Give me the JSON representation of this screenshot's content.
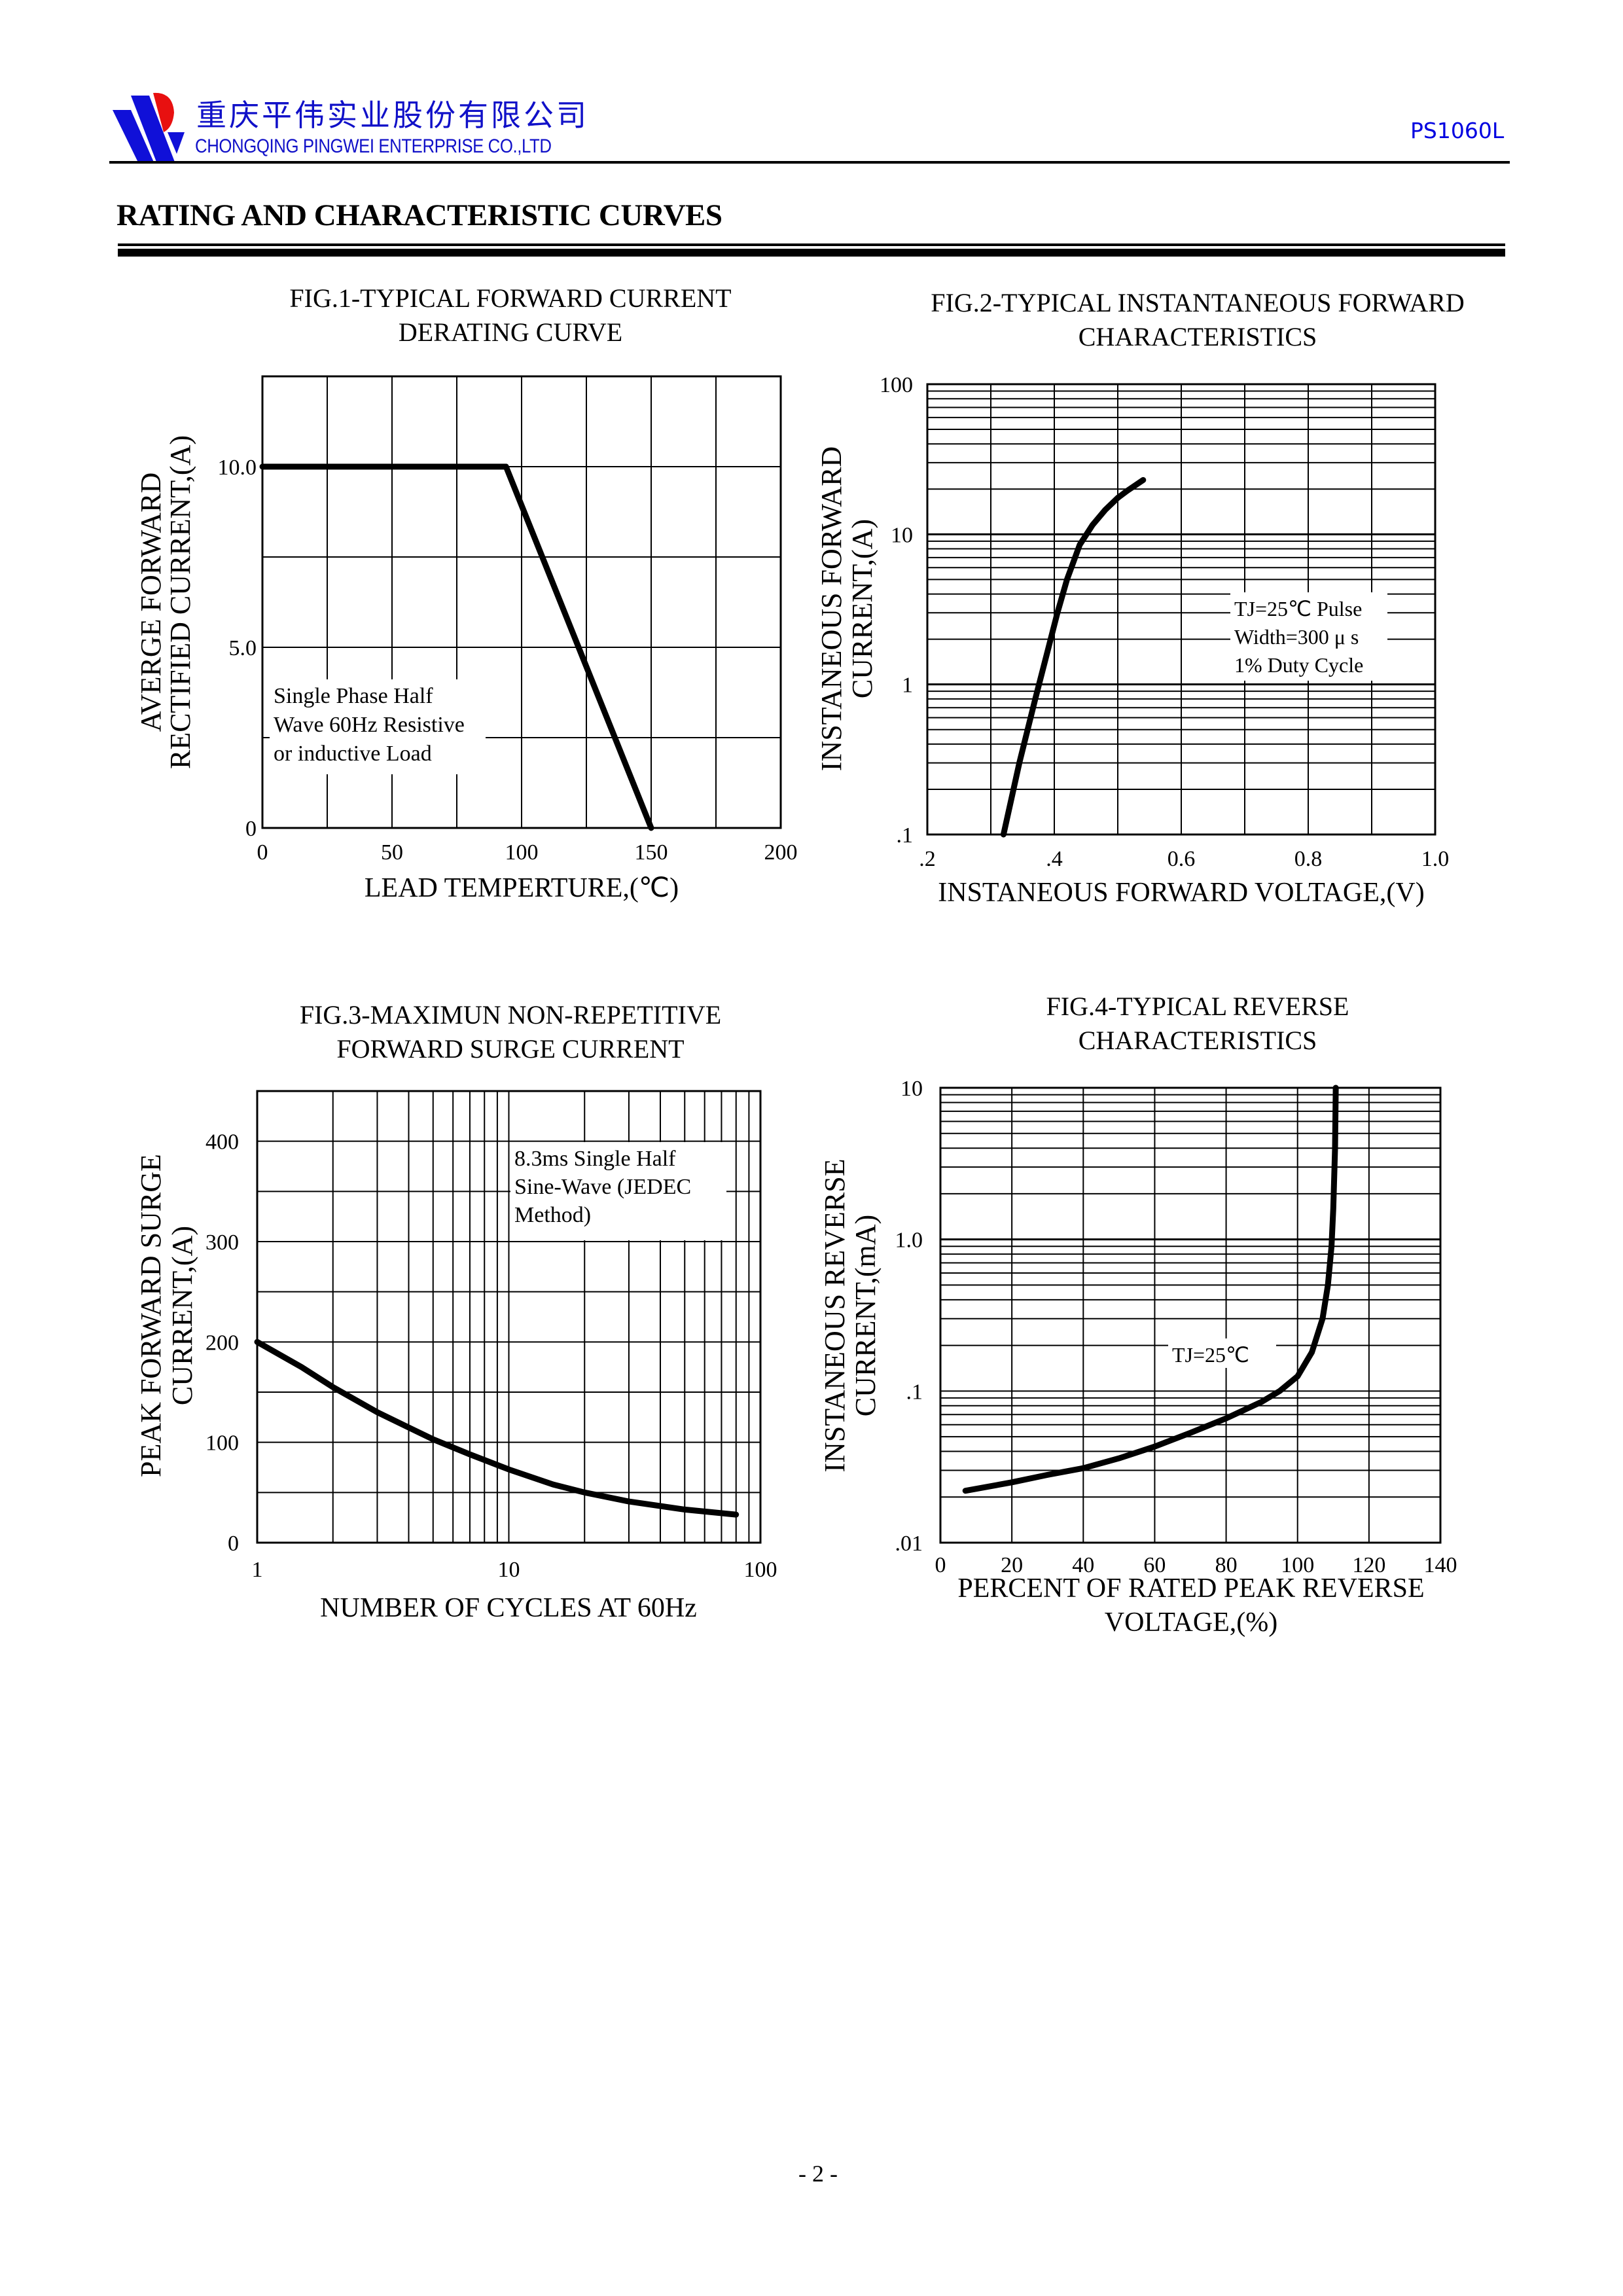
{
  "header": {
    "company_cn": "重庆平伟实业股份有限公司",
    "company_en": "CHONGQING PINGWEI ENTERPRISE CO.,LTD",
    "model": "PS1060L",
    "logo_icon": "pingwei-logo-icon",
    "colors": {
      "brand_blue": "#1010c8",
      "logo_red": "#e81010",
      "model_blue": "#0000e0"
    }
  },
  "section_title": "RATING AND CHARACTERISTIC CURVES",
  "footer": {
    "page_number": "- 2 -"
  },
  "chart_data": [
    {
      "id": "fig1",
      "type": "line",
      "title_lines": [
        "FIG.1-TYPICAL FORWARD CURRENT",
        "DERATING CURVE"
      ],
      "xlabel": "LEAD TEMPERTURE,(℃)",
      "ylabel_lines": [
        "AVERGE FORWARD",
        "RECTIFIED CURRENT,(A)"
      ],
      "xscale": "linear",
      "yscale": "linear",
      "xlim": [
        0,
        200
      ],
      "ylim": [
        0,
        12.5
      ],
      "x_ticks": [
        {
          "v": 0,
          "label": "0"
        },
        {
          "v": 50,
          "label": "50"
        },
        {
          "v": 100,
          "label": "100"
        },
        {
          "v": 150,
          "label": "150"
        },
        {
          "v": 200,
          "label": "200"
        }
      ],
      "y_ticks": [
        {
          "v": 0,
          "label": "0"
        },
        {
          "v": 5,
          "label": "5.0"
        },
        {
          "v": 10,
          "label": "10.0"
        }
      ],
      "grid_x": [
        25,
        50,
        75,
        100,
        125,
        150,
        175
      ],
      "grid_y": [
        2.5,
        5,
        7.5,
        10
      ],
      "grid": true,
      "series": [
        {
          "name": "derating",
          "x": [
            0,
            94,
            150
          ],
          "y": [
            10,
            10,
            0
          ]
        }
      ],
      "annotation_lines": [
        "Single Phase Half",
        "Wave 60Hz Resistive",
        "or inductive Load"
      ],
      "annotation_position": "bottom-left"
    },
    {
      "id": "fig2",
      "type": "line",
      "title_lines": [
        "FIG.2-TYPICAL INSTANTANEOUS FORWARD",
        "CHARACTERISTICS"
      ],
      "xlabel": "INSTANEOUS FORWARD VOLTAGE,(V)",
      "ylabel_lines": [
        "INSTANEOUS FORWARD",
        "CURRENT,(A)"
      ],
      "xscale": "linear",
      "yscale": "log",
      "xlim": [
        0.2,
        1.0
      ],
      "ylim": [
        0.1,
        100
      ],
      "x_ticks": [
        {
          "v": 0.2,
          "label": ".2"
        },
        {
          "v": 0.4,
          "label": ".4"
        },
        {
          "v": 0.6,
          "label": "0.6"
        },
        {
          "v": 0.8,
          "label": "0.8"
        },
        {
          "v": 1.0,
          "label": "1.0"
        }
      ],
      "y_ticks": [
        {
          "v": 0.1,
          "label": ".1"
        },
        {
          "v": 1,
          "label": "1"
        },
        {
          "v": 10,
          "label": "10"
        },
        {
          "v": 100,
          "label": "100"
        }
      ],
      "grid_x": [
        0.3,
        0.4,
        0.5,
        0.6,
        0.7,
        0.8,
        0.9
      ],
      "grid": true,
      "series": [
        {
          "name": "forward",
          "x": [
            0.32,
            0.345,
            0.37,
            0.39,
            0.405,
            0.42,
            0.44,
            0.46,
            0.48,
            0.5,
            0.515,
            0.54
          ],
          "y": [
            0.1,
            0.3,
            0.8,
            1.7,
            3.0,
            5.0,
            8.5,
            11.5,
            14.5,
            17.5,
            19.5,
            23
          ]
        }
      ],
      "annotation_lines": [
        "TJ=25℃ Pulse",
        "Width=300 μ s",
        "1% Duty Cycle"
      ],
      "annotation_position": "center-right"
    },
    {
      "id": "fig3",
      "type": "line",
      "title_lines": [
        "FIG.3-MAXIMUN NON-REPETITIVE",
        "FORWARD SURGE CURRENT"
      ],
      "xlabel": "NUMBER OF CYCLES AT 60Hz",
      "ylabel_lines": [
        "PEAK FORWARD SURGE",
        "CURRENT,(A)"
      ],
      "xscale": "log",
      "yscale": "linear",
      "xlim": [
        1,
        100
      ],
      "ylim": [
        0,
        450
      ],
      "x_ticks": [
        {
          "v": 1,
          "label": "1"
        },
        {
          "v": 10,
          "label": "10"
        },
        {
          "v": 100,
          "label": "100"
        }
      ],
      "y_ticks": [
        {
          "v": 0,
          "label": "0"
        },
        {
          "v": 100,
          "label": "100"
        },
        {
          "v": 200,
          "label": "200"
        },
        {
          "v": 300,
          "label": "300"
        },
        {
          "v": 400,
          "label": "400"
        }
      ],
      "grid_y": [
        50,
        100,
        150,
        200,
        250,
        300,
        350,
        400
      ],
      "grid": true,
      "series": [
        {
          "name": "surge",
          "x": [
            1,
            1.5,
            2,
            3,
            5,
            7,
            10,
            15,
            20,
            30,
            50,
            80
          ],
          "y": [
            200,
            175,
            155,
            130,
            103,
            88,
            73,
            58,
            50,
            41,
            33,
            28
          ]
        }
      ],
      "annotation_lines": [
        "8.3ms Single Half",
        "Sine-Wave (JEDEC",
        "Method)"
      ],
      "annotation_position": "top-right"
    },
    {
      "id": "fig4",
      "type": "line",
      "title_lines": [
        "FIG.4-TYPICAL REVERSE",
        "CHARACTERISTICS"
      ],
      "xlabel_lines": [
        "PERCENT OF RATED PEAK REVERSE",
        "VOLTAGE,(%)"
      ],
      "ylabel_lines": [
        "INSTANEOUS REVERSE",
        "CURRENT,(mA)"
      ],
      "xscale": "linear",
      "yscale": "log",
      "xlim": [
        0,
        140
      ],
      "ylim": [
        0.01,
        10
      ],
      "x_ticks": [
        {
          "v": 0,
          "label": "0"
        },
        {
          "v": 20,
          "label": "20"
        },
        {
          "v": 40,
          "label": "40"
        },
        {
          "v": 60,
          "label": "60"
        },
        {
          "v": 80,
          "label": "80"
        },
        {
          "v": 100,
          "label": "100"
        },
        {
          "v": 120,
          "label": "120"
        },
        {
          "v": 140,
          "label": "140"
        }
      ],
      "y_ticks": [
        {
          "v": 0.01,
          "label": ".01"
        },
        {
          "v": 0.1,
          "label": ".1"
        },
        {
          "v": 1,
          "label": "1.0"
        },
        {
          "v": 10,
          "label": "10"
        }
      ],
      "grid_x": [
        20,
        40,
        60,
        80,
        100,
        120
      ],
      "grid": true,
      "series": [
        {
          "name": "reverse",
          "x": [
            7,
            20,
            30,
            40,
            50,
            60,
            70,
            80,
            90,
            95,
            100,
            104,
            107,
            108.5,
            109.5,
            110,
            110.5,
            110.7
          ],
          "y": [
            0.022,
            0.025,
            0.028,
            0.031,
            0.036,
            0.043,
            0.053,
            0.066,
            0.085,
            0.1,
            0.125,
            0.18,
            0.3,
            0.5,
            0.9,
            1.6,
            4,
            10
          ]
        }
      ],
      "annotation_lines": [
        "TJ=25℃"
      ],
      "annotation_position": "center"
    }
  ]
}
